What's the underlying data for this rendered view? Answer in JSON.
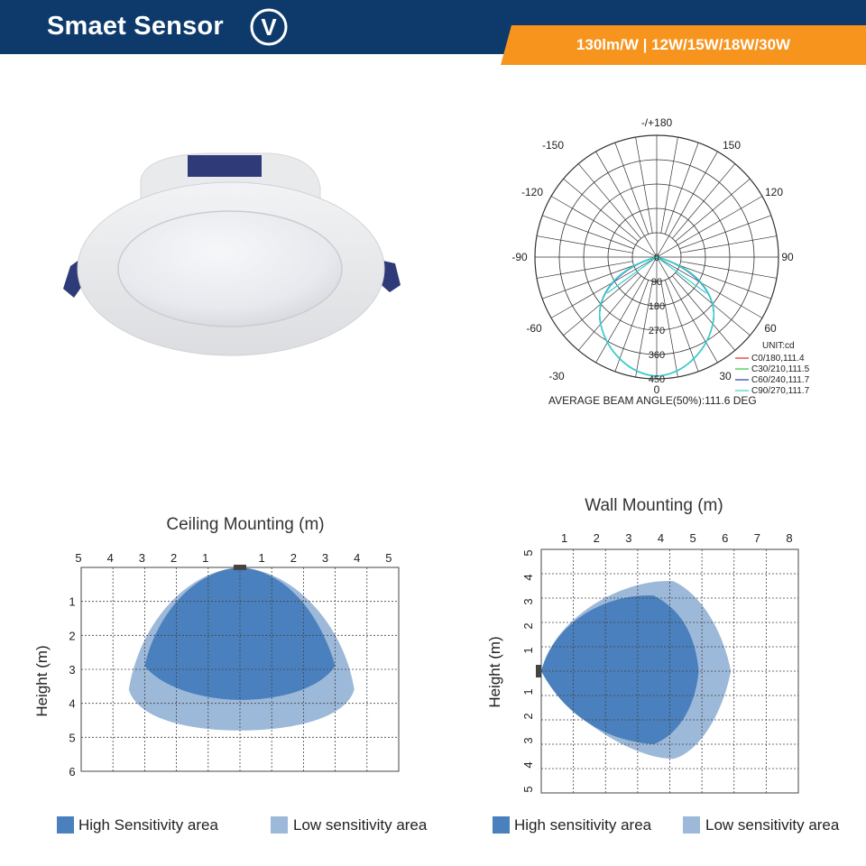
{
  "header": {
    "brand": "Smaet Sensor",
    "badge_letter": "V",
    "spec": "130lm/W | 12W/15W/18W/30W",
    "colors": {
      "bar": "#0d3a6b",
      "accent": "#f7941d"
    }
  },
  "product": {
    "image": "recessed-led-downlight-photo"
  },
  "polar": {
    "top_label": "-/+180",
    "angle_labels": {
      "a150l": "-150",
      "a150r": "150",
      "a120l": "-120",
      "a120r": "120",
      "a90l": "-90",
      "a90r": "90",
      "a60l": "-60",
      "a60r": "60",
      "a30l": "-30",
      "a30r": "30",
      "a0": "0"
    },
    "radial_labels": [
      "0",
      "90",
      "180",
      "270",
      "360",
      "450"
    ],
    "unit": "UNIT:cd",
    "legend": [
      {
        "label": "C0/180,111.4",
        "color": "#e8262a"
      },
      {
        "label": "C30/210,111.5",
        "color": "#2ecc40"
      },
      {
        "label": "C60/240,111.7",
        "color": "#2b3a9e"
      },
      {
        "label": "C90/270,111.7",
        "color": "#34d1d1"
      }
    ],
    "beam_angle": "AVERAGE BEAM ANGLE(50%):111.6 DEG"
  },
  "ceiling": {
    "title": "Ceiling Mounting (m)",
    "y_axis_label": "Height (m)",
    "x_ticks": [
      "5",
      "4",
      "3",
      "2",
      "1",
      "1",
      "2",
      "3",
      "4",
      "5"
    ],
    "y_ticks": [
      "1",
      "2",
      "3",
      "4",
      "5",
      "6"
    ],
    "legend_high": "High Sensitivity area",
    "legend_low": "Low sensitivity area"
  },
  "wall": {
    "title": "Wall Mounting (m)",
    "y_axis_label": "Height (m)",
    "x_ticks": [
      "1",
      "2",
      "3",
      "4",
      "5",
      "6",
      "7",
      "8"
    ],
    "y_ticks": [
      "5",
      "4",
      "3",
      "2",
      "1",
      "1",
      "2",
      "3",
      "4",
      "5"
    ],
    "legend_high": "High sensitivity area",
    "legend_low": "Low sensitivity area"
  },
  "colors": {
    "high": "#4a80bd",
    "low": "#9db9d9"
  }
}
